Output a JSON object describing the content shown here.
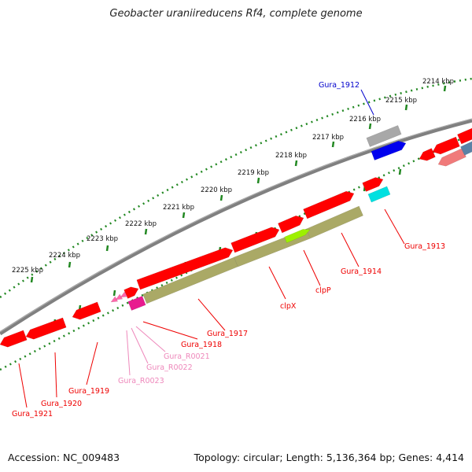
{
  "title": "Geobacter uraniireducens Rf4, complete genome",
  "footer": {
    "accession": "Accession: NC_009483",
    "stats": "Topology: circular; Length: 5,136,364 bp; Genes: 4,414"
  },
  "colors": {
    "forward_gene": "#ff0000",
    "reverse_gene": "#ff3333",
    "operon": "#aaa966",
    "highlight_gene": "#9df000",
    "ruler": "#228822",
    "backbone": "#808080",
    "blue_gene": "#0000ee",
    "cyan_gene": "#00e0e0",
    "rna_gene": "#ff66aa",
    "label_red": "#ee0000",
    "label_blue": "#0000cc",
    "label_pink": "#ee88bb"
  },
  "ruler": {
    "unit": "kbp",
    "ticks": [
      "2214 kbp",
      "2215 kbp",
      "2216 kbp",
      "2217 kbp",
      "2218 kbp",
      "2219 kbp",
      "2220 kbp",
      "2221 kbp",
      "2222 kbp",
      "2223 kbp",
      "2224 kbp",
      "2225 kbp"
    ]
  },
  "gene_labels": [
    {
      "name": "Gura_1912",
      "color": "blue"
    },
    {
      "name": "Gura_1913",
      "color": "red"
    },
    {
      "name": "Gura_1914",
      "color": "red"
    },
    {
      "name": "clpP",
      "color": "red"
    },
    {
      "name": "clpX",
      "color": "red"
    },
    {
      "name": "Gura_1917",
      "color": "red"
    },
    {
      "name": "Gura_1918",
      "color": "red"
    },
    {
      "name": "Gura_R0021",
      "color": "pink"
    },
    {
      "name": "Gura_R0022",
      "color": "pink"
    },
    {
      "name": "Gura_R0023",
      "color": "pink"
    },
    {
      "name": "Gura_1919",
      "color": "red"
    },
    {
      "name": "Gura_1920",
      "color": "red"
    },
    {
      "name": "Gura_1921",
      "color": "red"
    }
  ]
}
